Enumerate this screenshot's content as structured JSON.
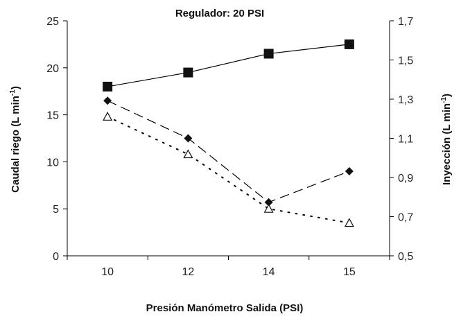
{
  "chart_data": {
    "type": "line",
    "title": "Regulador: 20 PSI",
    "xlabel": "Presión Manómetro Salida (PSI)",
    "ylabel_left": {
      "main": "Caudal riego (L min",
      "sup": "-1",
      "close": ")"
    },
    "ylabel_right": {
      "main": "Inyección (L min",
      "sup": "-1",
      "close": ")"
    },
    "categories": [
      "10",
      "12",
      "14",
      "15"
    ],
    "y_left_ticks": [
      "0",
      "5",
      "10",
      "15",
      "20",
      "25"
    ],
    "y_left_lim": [
      0,
      25
    ],
    "y_right_ticks": [
      "0,5",
      "0,7",
      "0,9",
      "1,1",
      "1,3",
      "1,5",
      "1,7"
    ],
    "y_right_lim": [
      0.5,
      1.7
    ],
    "grid": false,
    "series": [
      {
        "axis": "left",
        "marker": "square",
        "line": "solid",
        "values": [
          18.0,
          19.5,
          21.5,
          22.5
        ]
      },
      {
        "axis": "left",
        "marker": "diamond",
        "line": "dashed",
        "values": [
          16.5,
          12.5,
          5.7,
          9.0
        ]
      },
      {
        "axis": "left",
        "marker": "triangle-open",
        "line": "dotted",
        "values": [
          14.8,
          10.8,
          5.0,
          3.5
        ]
      }
    ]
  }
}
